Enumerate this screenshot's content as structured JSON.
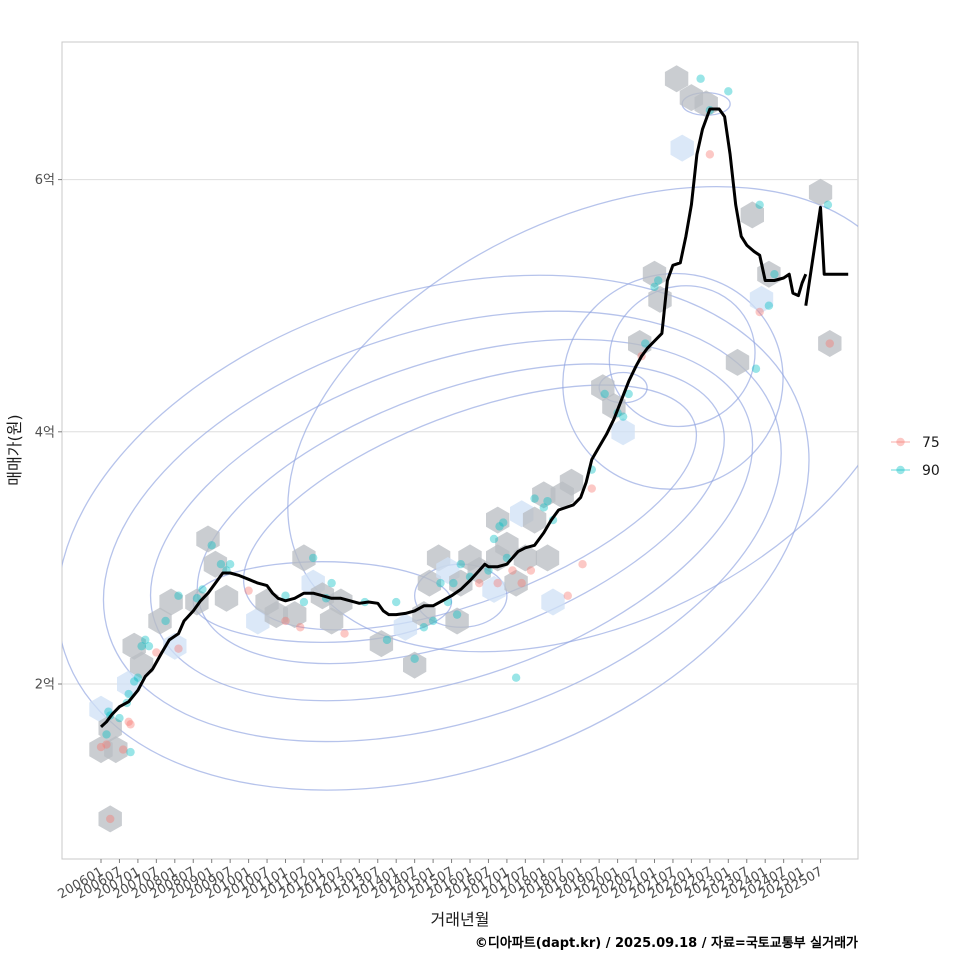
{
  "chart_data": {
    "type": "line",
    "title": "",
    "xlabel": "거래년월",
    "ylabel": "매매가(원)",
    "caption": "©디아파트(dapt.kr) / 2025.09.18 / 자료=국토교통부 실거래가",
    "x_tick_labels": [
      "200601",
      "200607",
      "200701",
      "200707",
      "200801",
      "200807",
      "200901",
      "200907",
      "201001",
      "201007",
      "201101",
      "201107",
      "201201",
      "201207",
      "201301",
      "201307",
      "201401",
      "201407",
      "201501",
      "201507",
      "201601",
      "201607",
      "201701",
      "201707",
      "201801",
      "201807",
      "201901",
      "201907",
      "202001",
      "202007",
      "202101",
      "202107",
      "202201",
      "202207",
      "202301",
      "202307",
      "202401",
      "202407",
      "202501",
      "202507"
    ],
    "y_ticks": [
      {
        "value": 2,
        "label": "2억"
      },
      {
        "value": 4,
        "label": "4억"
      },
      {
        "value": 6,
        "label": "6억"
      }
    ],
    "ylim": [
      0.65,
      7.1
    ],
    "xlim": [
      -3,
      40
    ],
    "grid": "horizontal",
    "legend": {
      "placement": "right",
      "entries": [
        {
          "name": "75",
          "color": "#F8766D"
        },
        {
          "name": "90",
          "color": "#00BFC4"
        }
      ]
    },
    "median_line": {
      "name": "",
      "color": "#000000",
      "segments": [
        [
          [
            0,
            1.66
          ],
          [
            0.3,
            1.7
          ],
          [
            0.6,
            1.76
          ],
          [
            1,
            1.82
          ],
          [
            1.5,
            1.86
          ],
          [
            2,
            1.95
          ],
          [
            2.4,
            2.06
          ],
          [
            2.8,
            2.12
          ],
          [
            3.3,
            2.25
          ],
          [
            3.7,
            2.35
          ],
          [
            4.2,
            2.4
          ],
          [
            4.5,
            2.5
          ],
          [
            5,
            2.58
          ],
          [
            5.4,
            2.66
          ],
          [
            5.8,
            2.72
          ],
          [
            6.2,
            2.8
          ],
          [
            6.6,
            2.88
          ],
          [
            7,
            2.88
          ],
          [
            7.5,
            2.86
          ],
          [
            8,
            2.83
          ],
          [
            8.5,
            2.8
          ],
          [
            9,
            2.78
          ],
          [
            9.3,
            2.72
          ],
          [
            9.6,
            2.68
          ],
          [
            10,
            2.66
          ],
          [
            10.5,
            2.68
          ],
          [
            11,
            2.72
          ],
          [
            11.5,
            2.72
          ],
          [
            12,
            2.7
          ],
          [
            12.5,
            2.68
          ],
          [
            13,
            2.68
          ],
          [
            13.5,
            2.66
          ],
          [
            14,
            2.64
          ],
          [
            14.5,
            2.65
          ],
          [
            15,
            2.64
          ],
          [
            15.3,
            2.58
          ],
          [
            15.6,
            2.55
          ],
          [
            16,
            2.55
          ],
          [
            16.5,
            2.56
          ],
          [
            17,
            2.58
          ],
          [
            17.5,
            2.62
          ],
          [
            18,
            2.62
          ],
          [
            18.5,
            2.66
          ],
          [
            19,
            2.7
          ],
          [
            19.5,
            2.75
          ],
          [
            20,
            2.82
          ],
          [
            20.5,
            2.9
          ],
          [
            20.8,
            2.95
          ],
          [
            21,
            2.93
          ],
          [
            21.5,
            2.93
          ],
          [
            22,
            2.95
          ],
          [
            22.3,
            3.0
          ],
          [
            22.6,
            3.05
          ],
          [
            23,
            3.08
          ],
          [
            23.5,
            3.1
          ],
          [
            24,
            3.2
          ],
          [
            24.4,
            3.3
          ],
          [
            24.8,
            3.38
          ],
          [
            25.2,
            3.4
          ],
          [
            25.6,
            3.42
          ],
          [
            26,
            3.48
          ],
          [
            26.3,
            3.6
          ],
          [
            26.6,
            3.78
          ],
          [
            27,
            3.88
          ],
          [
            27.4,
            3.98
          ],
          [
            27.8,
            4.1
          ],
          [
            28.2,
            4.25
          ],
          [
            28.6,
            4.4
          ],
          [
            29,
            4.52
          ],
          [
            29.3,
            4.6
          ],
          [
            29.6,
            4.66
          ],
          [
            30,
            4.72
          ],
          [
            30.4,
            4.78
          ],
          [
            30.7,
            5.2
          ],
          [
            31,
            5.32
          ],
          [
            31.4,
            5.34
          ],
          [
            31.7,
            5.55
          ],
          [
            32,
            5.8
          ],
          [
            32.3,
            6.2
          ],
          [
            32.6,
            6.4
          ],
          [
            33,
            6.56
          ],
          [
            33.5,
            6.56
          ],
          [
            33.8,
            6.5
          ],
          [
            34.1,
            6.2
          ],
          [
            34.4,
            5.8
          ],
          [
            34.7,
            5.55
          ],
          [
            35,
            5.48
          ],
          [
            35.4,
            5.43
          ],
          [
            35.7,
            5.4
          ],
          [
            36,
            5.2
          ],
          [
            36.5,
            5.2
          ],
          [
            37,
            5.22
          ],
          [
            37.3,
            5.25
          ],
          [
            37.5,
            5.1
          ],
          [
            37.8,
            5.08
          ],
          [
            38,
            5.18
          ],
          [
            38.2,
            5.25
          ]
        ],
        [
          [
            38.2,
            5.0
          ],
          [
            39,
            5.78
          ],
          [
            39.2,
            5.25
          ],
          [
            40.5,
            5.25
          ]
        ]
      ]
    },
    "series": [
      {
        "name": "75",
        "points": [
          [
            0,
            1.5
          ],
          [
            0.3,
            1.52
          ],
          [
            0.5,
            0.93
          ],
          [
            1.2,
            1.48
          ],
          [
            1.5,
            1.7
          ],
          [
            1.6,
            1.68
          ],
          [
            3,
            2.25
          ],
          [
            4.2,
            2.28
          ],
          [
            8,
            2.74
          ],
          [
            10,
            2.5
          ],
          [
            10.8,
            2.45
          ],
          [
            13.2,
            2.4
          ],
          [
            20.5,
            2.8
          ],
          [
            21.5,
            2.8
          ],
          [
            22.3,
            2.9
          ],
          [
            22.8,
            2.8
          ],
          [
            23.3,
            2.9
          ],
          [
            25.3,
            2.7
          ],
          [
            26.1,
            2.95
          ],
          [
            26.6,
            3.55
          ],
          [
            29.3,
            4.6
          ],
          [
            33,
            6.2
          ],
          [
            35.7,
            4.95
          ],
          [
            39.5,
            4.7
          ]
        ]
      },
      {
        "name": "90",
        "points": [
          [
            0.3,
            1.6
          ],
          [
            0.4,
            1.78
          ],
          [
            0.5,
            1.75
          ],
          [
            1,
            1.73
          ],
          [
            1.4,
            1.85
          ],
          [
            1.5,
            1.92
          ],
          [
            1.6,
            1.46
          ],
          [
            1.8,
            2.02
          ],
          [
            2,
            2.05
          ],
          [
            2.2,
            2.3
          ],
          [
            2.4,
            2.35
          ],
          [
            2.6,
            2.3
          ],
          [
            3.5,
            2.5
          ],
          [
            4.2,
            2.7
          ],
          [
            5.2,
            2.68
          ],
          [
            6,
            3.1
          ],
          [
            6.5,
            2.95
          ],
          [
            6.8,
            2.9
          ],
          [
            7,
            2.95
          ],
          [
            5.5,
            2.75
          ],
          [
            12.5,
            2.8
          ],
          [
            10,
            2.7
          ],
          [
            11,
            2.65
          ],
          [
            11.5,
            3.0
          ],
          [
            12.2,
            2.68
          ],
          [
            14.3,
            2.65
          ],
          [
            15.5,
            2.35
          ],
          [
            16,
            2.65
          ],
          [
            17,
            2.2
          ],
          [
            17.5,
            2.45
          ],
          [
            18,
            2.5
          ],
          [
            18.4,
            2.8
          ],
          [
            18.8,
            2.65
          ],
          [
            19.1,
            2.8
          ],
          [
            19.3,
            2.55
          ],
          [
            19.5,
            2.95
          ],
          [
            20,
            2.85
          ],
          [
            21,
            2.9
          ],
          [
            21.3,
            3.15
          ],
          [
            21.6,
            3.25
          ],
          [
            21.8,
            3.28
          ],
          [
            22,
            3.0
          ],
          [
            22.5,
            2.05
          ],
          [
            23.5,
            3.47
          ],
          [
            24,
            3.4
          ],
          [
            24.2,
            3.45
          ],
          [
            24.5,
            3.3
          ],
          [
            26.6,
            3.7
          ],
          [
            27.3,
            4.3
          ],
          [
            28,
            4.15
          ],
          [
            28.3,
            4.12
          ],
          [
            28.6,
            4.3
          ],
          [
            29.5,
            4.7
          ],
          [
            30,
            5.15
          ],
          [
            30.2,
            5.2
          ],
          [
            32.5,
            6.8
          ],
          [
            33,
            6.55
          ],
          [
            34,
            6.7
          ],
          [
            35.5,
            4.5
          ],
          [
            35.7,
            5.8
          ],
          [
            36.2,
            5.0
          ],
          [
            36.5,
            5.25
          ],
          [
            39.4,
            5.8
          ]
        ]
      }
    ],
    "hex_bins": [
      [
        0,
        1.8
      ],
      [
        0,
        1.48
      ],
      [
        0.5,
        1.65
      ],
      [
        0.8,
        1.48
      ],
      [
        0.5,
        0.93
      ],
      [
        1.5,
        2.0
      ],
      [
        1.8,
        2.3
      ],
      [
        2.2,
        2.15
      ],
      [
        3.2,
        2.5
      ],
      [
        3.8,
        2.65
      ],
      [
        4,
        2.3
      ],
      [
        5.2,
        2.65
      ],
      [
        5.8,
        3.15
      ],
      [
        6.2,
        2.95
      ],
      [
        6.8,
        2.68
      ],
      [
        8.5,
        2.5
      ],
      [
        9,
        2.65
      ],
      [
        9.5,
        2.55
      ],
      [
        10.5,
        2.55
      ],
      [
        11,
        3.0
      ],
      [
        11.5,
        2.8
      ],
      [
        12,
        2.7
      ],
      [
        12.5,
        2.5
      ],
      [
        13,
        2.65
      ],
      [
        15.2,
        2.32
      ],
      [
        16.5,
        2.45
      ],
      [
        17,
        2.15
      ],
      [
        17.5,
        2.55
      ],
      [
        17.8,
        2.8
      ],
      [
        18.3,
        3.0
      ],
      [
        18.8,
        2.9
      ],
      [
        19.3,
        2.5
      ],
      [
        19.5,
        2.8
      ],
      [
        20,
        3.0
      ],
      [
        20.5,
        2.9
      ],
      [
        21.3,
        2.75
      ],
      [
        21.5,
        3.0
      ],
      [
        21.5,
        3.3
      ],
      [
        22,
        3.1
      ],
      [
        22.5,
        2.8
      ],
      [
        22.8,
        3.35
      ],
      [
        23,
        3.0
      ],
      [
        23.5,
        3.3
      ],
      [
        24,
        3.5
      ],
      [
        24.2,
        3.0
      ],
      [
        24.5,
        2.65
      ],
      [
        25,
        3.5
      ],
      [
        25.5,
        3.6
      ],
      [
        27.2,
        4.35
      ],
      [
        27.8,
        4.2
      ],
      [
        28.3,
        4.0
      ],
      [
        29.2,
        4.7
      ],
      [
        30,
        5.25
      ],
      [
        30.3,
        5.05
      ],
      [
        31.2,
        6.8
      ],
      [
        31.5,
        6.25
      ],
      [
        32,
        6.65
      ],
      [
        32.8,
        6.6
      ],
      [
        34.5,
        4.55
      ],
      [
        35.3,
        5.72
      ],
      [
        35.8,
        5.05
      ],
      [
        36.2,
        5.25
      ],
      [
        39,
        5.9
      ],
      [
        39.5,
        4.7
      ]
    ],
    "density_contours": [
      {
        "cx": 18,
        "cy": 3.2,
        "a": 21,
        "b": 1.9,
        "rot": 18
      },
      {
        "cx": 18.5,
        "cy": 3.25,
        "a": 19,
        "b": 1.55,
        "rot": 18
      },
      {
        "cx": 19,
        "cy": 3.3,
        "a": 17,
        "b": 1.25,
        "rot": 19
      },
      {
        "cx": 19.5,
        "cy": 3.35,
        "a": 15,
        "b": 0.98,
        "rot": 20
      },
      {
        "cx": 20,
        "cy": 3.4,
        "a": 13,
        "b": 0.74,
        "rot": 21
      },
      {
        "cx": 12,
        "cy": 2.65,
        "a": 7,
        "b": 0.32,
        "rot": 0
      },
      {
        "cx": 19.5,
        "cy": 2.7,
        "a": 2.5,
        "b": 0.25,
        "rot": 0
      },
      {
        "cx": 31,
        "cy": 4.4,
        "a": 6,
        "b": 0.85,
        "rot": 25
      },
      {
        "cx": 31.5,
        "cy": 4.6,
        "a": 4,
        "b": 0.55,
        "rot": 28
      },
      {
        "cx": 28.3,
        "cy": 4.35,
        "a": 1.3,
        "b": 0.12,
        "rot": 0
      },
      {
        "cx": 32.8,
        "cy": 6.6,
        "a": 1.3,
        "b": 0.09,
        "rot": 0
      },
      {
        "cx": 27,
        "cy": 4.1,
        "a": 18,
        "b": 1.6,
        "rot": 26
      }
    ]
  }
}
